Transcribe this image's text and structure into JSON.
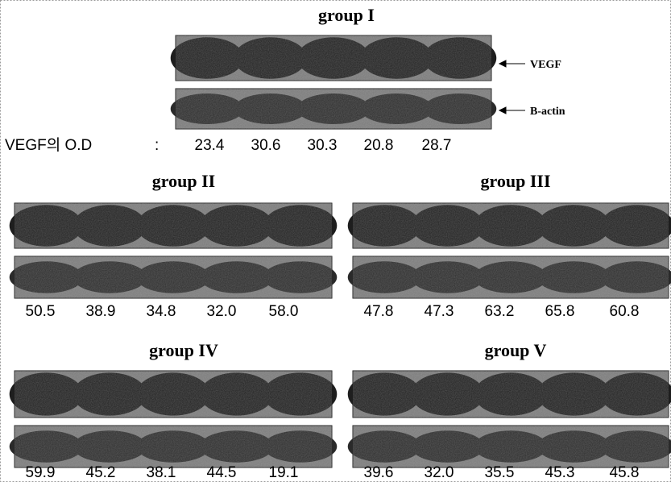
{
  "groups": [
    {
      "title": "group I",
      "values": [
        "23.4",
        "30.6",
        "30.3",
        "20.8",
        "28.7"
      ]
    },
    {
      "title": "group II",
      "values": [
        "50.5",
        "38.9",
        "34.8",
        "32.0",
        "58.0"
      ]
    },
    {
      "title": "group III",
      "values": [
        "47.8",
        "47.3",
        "63.2",
        "65.8",
        "60.8"
      ]
    },
    {
      "title": "group IV",
      "values": [
        "59.9",
        "45.2",
        "38.1",
        "44.5",
        "19.1"
      ]
    },
    {
      "title": "group V",
      "values": [
        "39.6",
        "32.0",
        "35.5",
        "45.3",
        "45.8"
      ]
    }
  ],
  "labels": {
    "vegf": "VEGF",
    "b_actin": "B-actin",
    "od_label": "VEGF의 O.D",
    "colon": ":"
  }
}
